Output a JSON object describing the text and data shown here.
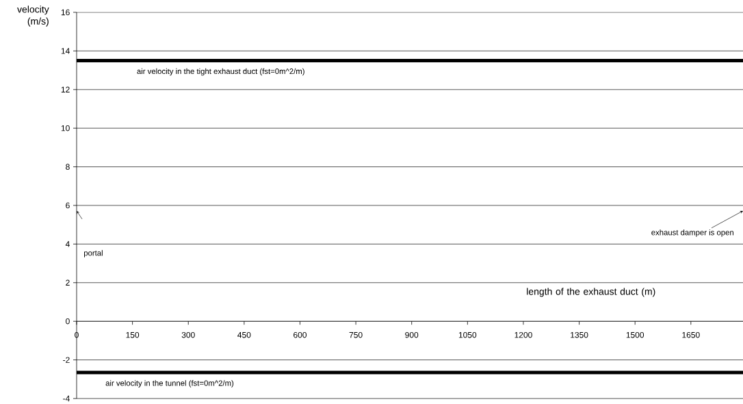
{
  "chart_data": {
    "type": "line",
    "xlabel": "length of the exhaust duct (m)",
    "ylabel": "velocity (m/s)",
    "xlim": [
      0,
      1790
    ],
    "ylim": [
      -4,
      16
    ],
    "xticks": [
      0,
      150,
      300,
      450,
      600,
      750,
      900,
      1050,
      1200,
      1350,
      1500,
      1650
    ],
    "yticks": [
      -4,
      -2,
      0,
      2,
      4,
      6,
      8,
      10,
      12,
      14,
      16
    ],
    "grid": "y",
    "ref_lines": [
      {
        "axis": "y",
        "value": 13.5,
        "label": "air velocity in the tight exhaust duct (fst=0m^2/m)",
        "color": "#000000"
      },
      {
        "axis": "y",
        "value": -2.65,
        "label": "air velocity in the tunnel (fst=0m^2/m)",
        "color": "#000000"
      }
    ],
    "annotations": [
      "portal",
      "exhaust damper is open"
    ]
  }
}
